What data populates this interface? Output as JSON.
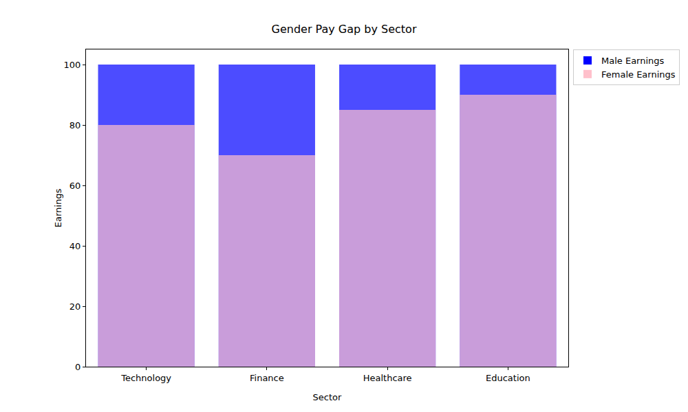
{
  "chart_data": {
    "type": "bar",
    "title": "Gender Pay Gap by Sector",
    "x_label": "Sector",
    "y_label": "Earnings",
    "categories": [
      "Technology",
      "Finance",
      "Healthcare",
      "Education"
    ],
    "series": [
      {
        "name": "Male Earnings",
        "color": "#0000ff",
        "values": [
          100,
          100,
          100,
          100
        ]
      },
      {
        "name": "Female Earnings",
        "color": "#ffc0cb",
        "values": [
          80,
          70,
          85,
          90
        ]
      }
    ],
    "ylim": [
      0,
      105
    ],
    "yticks": [
      0,
      20,
      40,
      60,
      80,
      100
    ],
    "grid": false,
    "legend": "upper right"
  }
}
